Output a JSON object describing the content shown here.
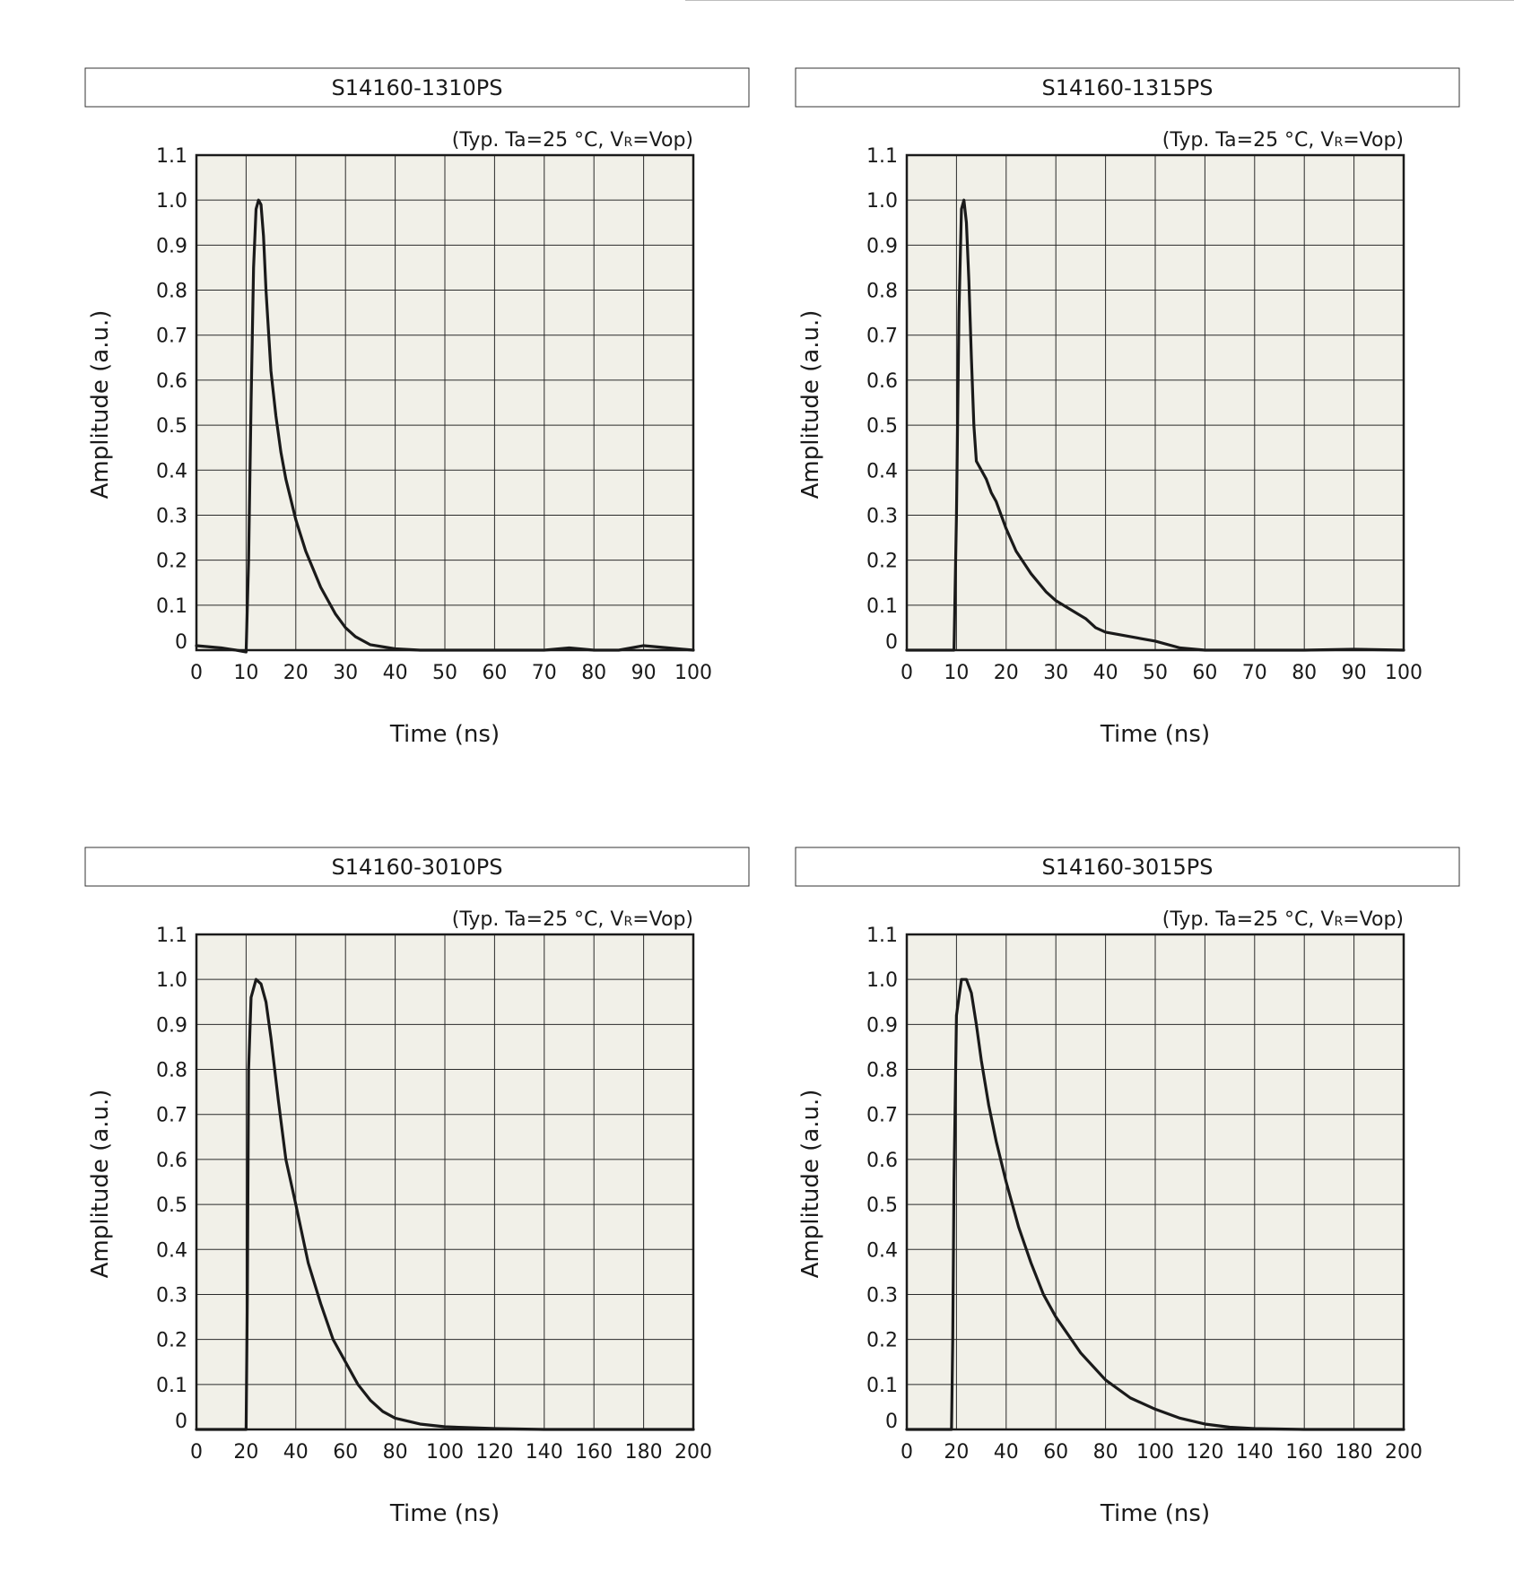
{
  "colors": {
    "plot_bg": "#f1f0e8",
    "grid": "#2a2a2a",
    "frame": "#1a1a1a",
    "curve": "#1a1a1a"
  },
  "chart_data": [
    {
      "type": "line",
      "title": "S14160-1310PS",
      "condition": {
        "prefix": "(Typ. Ta=25 °C, V",
        "subscript": "R",
        "suffix": "=Vop)"
      },
      "xlabel": "Time (ns)",
      "ylabel": "Amplitude (a.u.)",
      "xlim": [
        0,
        100
      ],
      "ylim": [
        0,
        1.1
      ],
      "xticks": [
        "0",
        "10",
        "20",
        "30",
        "40",
        "50",
        "60",
        "70",
        "80",
        "90",
        "100"
      ],
      "yticks": [
        "0",
        "0.1",
        "0.2",
        "0.3",
        "0.4",
        "0.5",
        "0.6",
        "0.7",
        "0.8",
        "0.9",
        "1.0",
        "1.1"
      ],
      "grid": true,
      "series": [
        {
          "name": "S14160-1310PS",
          "x": [
            0,
            2,
            5,
            8,
            10,
            10.5,
            11,
            11.5,
            12,
            12.5,
            13,
            13.5,
            14,
            15,
            16,
            17,
            18,
            20,
            22,
            25,
            28,
            30,
            32,
            35,
            40,
            45,
            50,
            60,
            70,
            75,
            80,
            85,
            90,
            95,
            100
          ],
          "y": [
            0.01,
            0.008,
            0.005,
            0.0,
            -0.005,
            0.2,
            0.55,
            0.85,
            0.98,
            1.0,
            0.99,
            0.92,
            0.8,
            0.62,
            0.52,
            0.44,
            0.38,
            0.29,
            0.22,
            0.14,
            0.08,
            0.05,
            0.03,
            0.012,
            0.003,
            0.0,
            0.0,
            0.0,
            0.0,
            0.005,
            0.0,
            0.0,
            0.01,
            0.005,
            0.0
          ]
        }
      ]
    },
    {
      "type": "line",
      "title": "S14160-1315PS",
      "condition": {
        "prefix": "(Typ. Ta=25 °C, V",
        "subscript": "R",
        "suffix": "=Vop)"
      },
      "xlabel": "Time (ns)",
      "ylabel": "Amplitude (a.u.)",
      "xlim": [
        0,
        100
      ],
      "ylim": [
        0,
        1.1
      ],
      "xticks": [
        "0",
        "10",
        "20",
        "30",
        "40",
        "50",
        "60",
        "70",
        "80",
        "90",
        "100"
      ],
      "yticks": [
        "0",
        "0.1",
        "0.2",
        "0.3",
        "0.4",
        "0.5",
        "0.6",
        "0.7",
        "0.8",
        "0.9",
        "1.0",
        "1.1"
      ],
      "grid": true,
      "series": [
        {
          "name": "S14160-1315PS",
          "x": [
            0,
            5,
            9.5,
            10,
            10.5,
            11,
            11.5,
            12,
            12.5,
            13,
            13.5,
            14,
            14.5,
            15,
            16,
            17,
            18,
            20,
            22,
            25,
            28,
            30,
            33,
            36,
            38,
            40,
            45,
            50,
            55,
            60,
            70,
            80,
            90,
            100
          ],
          "y": [
            0.0,
            0.0,
            0.0,
            0.3,
            0.75,
            0.98,
            1.0,
            0.95,
            0.82,
            0.65,
            0.5,
            0.42,
            0.41,
            0.4,
            0.38,
            0.35,
            0.33,
            0.27,
            0.22,
            0.17,
            0.13,
            0.11,
            0.09,
            0.07,
            0.05,
            0.04,
            0.03,
            0.02,
            0.005,
            0.0,
            0.0,
            0.0,
            0.002,
            0.0
          ]
        }
      ]
    },
    {
      "type": "line",
      "title": "S14160-3010PS",
      "condition": {
        "prefix": "(Typ. Ta=25 °C, V",
        "subscript": "R",
        "suffix": "=Vop)"
      },
      "xlabel": "Time (ns)",
      "ylabel": "Amplitude (a.u.)",
      "xlim": [
        0,
        200
      ],
      "ylim": [
        0,
        1.1
      ],
      "xticks": [
        "0",
        "20",
        "40",
        "60",
        "80",
        "100",
        "120",
        "140",
        "160",
        "180",
        "200"
      ],
      "yticks": [
        "0",
        "0.1",
        "0.2",
        "0.3",
        "0.4",
        "0.5",
        "0.6",
        "0.7",
        "0.8",
        "0.9",
        "1.0",
        "1.1"
      ],
      "grid": true,
      "series": [
        {
          "name": "S14160-3010PS",
          "x": [
            0,
            10,
            20,
            20.5,
            21,
            22,
            24,
            26,
            28,
            30,
            33,
            36,
            40,
            45,
            50,
            55,
            60,
            65,
            70,
            75,
            80,
            90,
            100,
            120,
            140,
            160,
            200
          ],
          "y": [
            0.0,
            0.0,
            0.0,
            0.3,
            0.8,
            0.96,
            1.0,
            0.99,
            0.95,
            0.87,
            0.73,
            0.6,
            0.5,
            0.37,
            0.28,
            0.2,
            0.15,
            0.1,
            0.065,
            0.04,
            0.025,
            0.012,
            0.006,
            0.002,
            0.0,
            0.0,
            0.0
          ]
        }
      ]
    },
    {
      "type": "line",
      "title": "S14160-3015PS",
      "condition": {
        "prefix": "(Typ. Ta=25 °C, V",
        "subscript": "R",
        "suffix": "=Vop)"
      },
      "xlabel": "Time (ns)",
      "ylabel": "Amplitude (a.u.)",
      "xlim": [
        0,
        200
      ],
      "ylim": [
        0,
        1.1
      ],
      "xticks": [
        "0",
        "20",
        "40",
        "60",
        "80",
        "100",
        "120",
        "140",
        "160",
        "180",
        "200"
      ],
      "yticks": [
        "0",
        "0.1",
        "0.2",
        "0.3",
        "0.4",
        "0.5",
        "0.6",
        "0.7",
        "0.8",
        "0.9",
        "1.0",
        "1.1"
      ],
      "grid": true,
      "series": [
        {
          "name": "S14160-3015PS",
          "x": [
            0,
            10,
            18,
            18.5,
            19,
            20,
            22,
            24,
            26,
            28,
            30,
            33,
            36,
            40,
            45,
            50,
            55,
            60,
            70,
            80,
            90,
            100,
            110,
            120,
            130,
            140,
            160,
            200
          ],
          "y": [
            0.0,
            0.0,
            0.0,
            0.2,
            0.55,
            0.92,
            1.0,
            1.0,
            0.97,
            0.9,
            0.82,
            0.72,
            0.64,
            0.55,
            0.45,
            0.37,
            0.3,
            0.25,
            0.17,
            0.11,
            0.07,
            0.045,
            0.025,
            0.012,
            0.005,
            0.002,
            0.0,
            0.0
          ]
        }
      ]
    }
  ]
}
